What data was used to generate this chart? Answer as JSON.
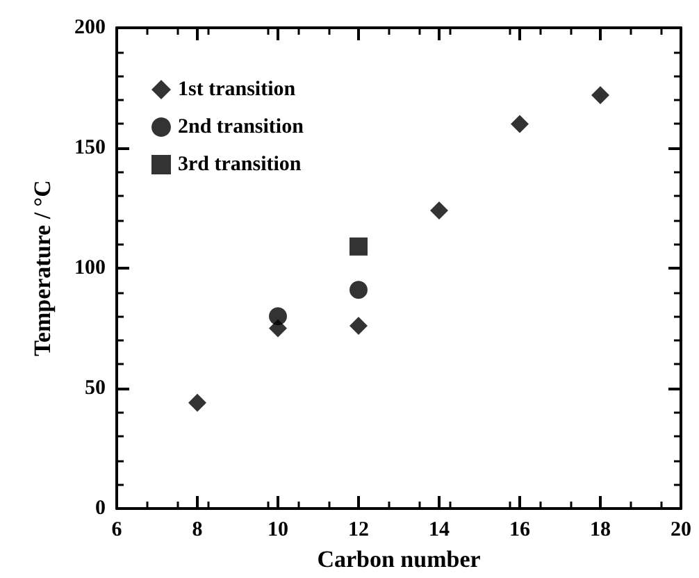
{
  "chart_data": {
    "type": "scatter",
    "xlabel": "Carbon number",
    "ylabel": "Temperature / °C",
    "xlim": [
      6,
      20
    ],
    "xticks": [
      6,
      8,
      10,
      12,
      14,
      16,
      18,
      20
    ],
    "ylim": [
      0,
      200
    ],
    "yticks": [
      0,
      50,
      100,
      150,
      200
    ],
    "grid": false,
    "legend": "top left",
    "series": [
      {
        "name": "1st transition",
        "color": "#000000",
        "marker": "diamond",
        "x": [
          8,
          10,
          12,
          14,
          16,
          18
        ],
        "values": [
          44,
          75,
          76,
          124,
          160,
          172
        ]
      },
      {
        "name": "2nd transition",
        "color": "#000000",
        "marker": "circle",
        "x": [
          10,
          12
        ],
        "values": [
          80,
          91
        ]
      },
      {
        "name": "3rd transition",
        "color": "#000000",
        "marker": "square",
        "x": [
          12
        ],
        "values": [
          109
        ]
      }
    ]
  }
}
